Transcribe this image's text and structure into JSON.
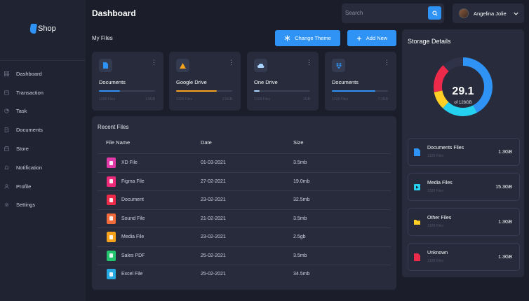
{
  "brand": {
    "logo_text": "Shop",
    "accent": "#2f93f5"
  },
  "nav": [
    {
      "label": "Dashboard",
      "icon": "grid-icon"
    },
    {
      "label": "Transaction",
      "icon": "transaction-icon"
    },
    {
      "label": "Task",
      "icon": "task-icon"
    },
    {
      "label": "Documents",
      "icon": "document-icon"
    },
    {
      "label": "Store",
      "icon": "store-icon"
    },
    {
      "label": "Notification",
      "icon": "bell-icon"
    },
    {
      "label": "Profile",
      "icon": "user-icon"
    },
    {
      "label": "Settings",
      "icon": "gear-icon"
    }
  ],
  "header": {
    "title": "Dashboard",
    "search_placeholder": "Search",
    "user_name": "Angelina Jolie"
  },
  "my_files": {
    "label": "My Files",
    "change_theme": "Change Theme",
    "add_new": "Add New",
    "cards": [
      {
        "title": "Documents",
        "icon": "document-icon",
        "color": "#2f93f5",
        "progress": 0.38,
        "foot_left": "1328 Files",
        "foot_right": "1.9GB"
      },
      {
        "title": "Google Drive",
        "icon": "google-drive-icon",
        "color": "#f7a21b",
        "progress": 0.72,
        "foot_left": "1328 Files",
        "foot_right": "2.9GB"
      },
      {
        "title": "One Drive",
        "icon": "cloud-icon",
        "color": "#a8d4ff",
        "progress": 0.1,
        "foot_left": "1328 Files",
        "foot_right": "1GB"
      },
      {
        "title": "Documents",
        "icon": "dropbox-icon",
        "color": "#2f93f5",
        "progress": 0.78,
        "foot_left": "1328 Files",
        "foot_right": "7.3GB"
      }
    ]
  },
  "recent_files": {
    "title": "Recent Files",
    "columns": [
      "File Name",
      "Date",
      "Size"
    ],
    "rows": [
      {
        "name": "XD File",
        "date": "01-03-2021",
        "size": "3.5mb",
        "color": "#e239a8"
      },
      {
        "name": "Figma File",
        "date": "27-02-2021",
        "size": "19.0mb",
        "color": "#ee2a7b"
      },
      {
        "name": "Document",
        "date": "23-02-2021",
        "size": "32.5mb",
        "color": "#ee2a4a"
      },
      {
        "name": "Sound File",
        "date": "21-02-2021",
        "size": "3.5mb",
        "color": "#f26b3a"
      },
      {
        "name": "Media File",
        "date": "23-02-2021",
        "size": "2.5gb",
        "color": "#f7a21b"
      },
      {
        "name": "Sales PDF",
        "date": "25-02-2021",
        "size": "3.5mb",
        "color": "#22c56e"
      },
      {
        "name": "Excel File",
        "date": "25-02-2021",
        "size": "34.5mb",
        "color": "#26a9e0"
      }
    ]
  },
  "storage": {
    "title": "Storage Details",
    "used": "29.1",
    "total": "of 128GB",
    "segments": [
      {
        "color": "#2f93f5",
        "fraction": 0.42
      },
      {
        "color": "#26d0ef",
        "fraction": 0.2
      },
      {
        "color": "#ffcf26",
        "fraction": 0.1
      },
      {
        "color": "#ee2a4a",
        "fraction": 0.16
      },
      {
        "color": "#2f3349",
        "fraction": 0.12
      }
    ],
    "items": [
      {
        "title": "Documents Files",
        "sub": "1328 Files",
        "value": "1.3GB",
        "icon": "document-icon",
        "color": "#2f93f5"
      },
      {
        "title": "Media Files",
        "sub": "1328 Files",
        "value": "15.3GB",
        "icon": "media-icon",
        "color": "#26d0ef"
      },
      {
        "title": "Other Files",
        "sub": "1328 Files",
        "value": "1.3GB",
        "icon": "folder-icon",
        "color": "#ffcf26"
      },
      {
        "title": "Unknown",
        "sub": "1328 Files",
        "value": "1.3GB",
        "icon": "unknown-file-icon",
        "color": "#ee2a4a"
      }
    ]
  }
}
